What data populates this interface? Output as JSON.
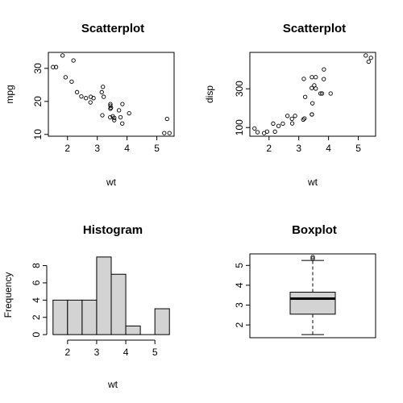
{
  "chart_data": [
    {
      "type": "scatter",
      "title": "Scatterplot",
      "xlabel": "wt",
      "ylabel": "mpg",
      "xlim": [
        1.513,
        5.424
      ],
      "ylim": [
        10.4,
        33.9
      ],
      "xticks": [
        2,
        3,
        4,
        5
      ],
      "yticks": [
        10,
        20,
        30
      ],
      "points": [
        [
          2.62,
          21.0
        ],
        [
          2.875,
          21.0
        ],
        [
          2.32,
          22.8
        ],
        [
          3.215,
          21.4
        ],
        [
          3.44,
          18.7
        ],
        [
          3.46,
          18.1
        ],
        [
          3.57,
          14.3
        ],
        [
          3.19,
          24.4
        ],
        [
          3.15,
          22.8
        ],
        [
          3.44,
          19.2
        ],
        [
          3.44,
          17.8
        ],
        [
          4.07,
          16.4
        ],
        [
          3.73,
          17.3
        ],
        [
          3.78,
          15.2
        ],
        [
          5.25,
          10.4
        ],
        [
          5.424,
          10.4
        ],
        [
          5.345,
          14.7
        ],
        [
          2.2,
          32.4
        ],
        [
          1.615,
          30.4
        ],
        [
          1.835,
          33.9
        ],
        [
          2.465,
          21.5
        ],
        [
          3.52,
          15.5
        ],
        [
          3.435,
          15.2
        ],
        [
          3.84,
          13.3
        ],
        [
          3.845,
          19.2
        ],
        [
          1.935,
          27.3
        ],
        [
          2.14,
          26.0
        ],
        [
          1.513,
          30.4
        ],
        [
          3.17,
          15.8
        ],
        [
          2.77,
          19.7
        ],
        [
          3.57,
          15.0
        ],
        [
          2.78,
          21.4
        ]
      ]
    },
    {
      "type": "scatter",
      "title": "Scatterplot",
      "xlabel": "wt",
      "ylabel": "disp",
      "xlim": [
        1.513,
        5.424
      ],
      "ylim": [
        71.1,
        472
      ],
      "xticks": [
        2,
        3,
        4,
        5
      ],
      "yticks": [
        100,
        300
      ],
      "points": [
        [
          2.62,
          160
        ],
        [
          2.875,
          160
        ],
        [
          2.32,
          108
        ],
        [
          3.215,
          258
        ],
        [
          3.44,
          360
        ],
        [
          3.46,
          225
        ],
        [
          3.57,
          360
        ],
        [
          3.19,
          146.7
        ],
        [
          3.15,
          140.8
        ],
        [
          3.44,
          167.6
        ],
        [
          3.44,
          167.6
        ],
        [
          4.07,
          275.8
        ],
        [
          3.73,
          275.8
        ],
        [
          3.78,
          275.8
        ],
        [
          5.25,
          472
        ],
        [
          5.424,
          460
        ],
        [
          5.345,
          440
        ],
        [
          2.2,
          78.7
        ],
        [
          1.615,
          75.7
        ],
        [
          1.835,
          71.1
        ],
        [
          2.465,
          120.1
        ],
        [
          3.52,
          318
        ],
        [
          3.435,
          304
        ],
        [
          3.84,
          350
        ],
        [
          3.845,
          400
        ],
        [
          1.935,
          79
        ],
        [
          2.14,
          120.3
        ],
        [
          1.513,
          95.1
        ],
        [
          3.17,
          351
        ],
        [
          2.77,
          145
        ],
        [
          3.57,
          301
        ],
        [
          2.78,
          121
        ]
      ]
    },
    {
      "type": "bar",
      "title": "Histogram",
      "xlabel": "wt",
      "ylabel": "Frequency",
      "bins": [
        [
          1.5,
          2.0
        ],
        [
          2.0,
          2.5
        ],
        [
          2.5,
          3.0
        ],
        [
          3.0,
          3.5
        ],
        [
          3.5,
          4.0
        ],
        [
          4.0,
          4.5
        ],
        [
          4.5,
          5.0
        ],
        [
          5.0,
          5.5
        ]
      ],
      "values": [
        4,
        4,
        4,
        9,
        7,
        1,
        0,
        3
      ],
      "xlim": [
        1.5,
        5.5
      ],
      "ylim": [
        0,
        9
      ],
      "xticks": [
        2,
        3,
        4,
        5
      ],
      "yticks": [
        0,
        2,
        4,
        6,
        8
      ]
    },
    {
      "type": "boxplot",
      "title": "Boxplot",
      "ylabel": "",
      "min": 1.513,
      "q1": 2.5425,
      "median": 3.325,
      "q3": 3.65,
      "whisker_high": 5.25,
      "outliers": [
        5.345,
        5.424
      ],
      "ylim": [
        1.513,
        5.424
      ],
      "yticks": [
        2,
        3,
        4,
        5
      ]
    }
  ]
}
